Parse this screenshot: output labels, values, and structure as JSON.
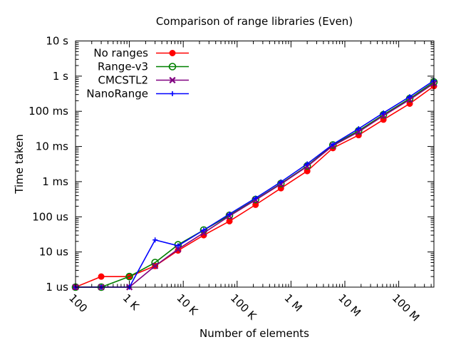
{
  "chart_data": {
    "type": "line",
    "title": "Comparison of range libraries (Even)",
    "xlabel": "Number of elements",
    "ylabel": "Time taken",
    "x_scale": "log",
    "y_scale": "log",
    "xlim": [
      100,
      450000000
    ],
    "ylim": [
      1e-06,
      10
    ],
    "grid": false,
    "legend_position": "top-left",
    "x_ticks": [
      {
        "value": 100,
        "label": "100"
      },
      {
        "value": 1000,
        "label": "1 K"
      },
      {
        "value": 10000,
        "label": "10 K"
      },
      {
        "value": 100000,
        "label": "100 K"
      },
      {
        "value": 1000000,
        "label": "1 M"
      },
      {
        "value": 10000000,
        "label": "10 M"
      },
      {
        "value": 100000000,
        "label": "100 M"
      }
    ],
    "y_ticks": [
      {
        "value": 1e-06,
        "label": "1 us"
      },
      {
        "value": 1e-05,
        "label": "10 us"
      },
      {
        "value": 0.0001,
        "label": "100 us"
      },
      {
        "value": 0.001,
        "label": "1 ms"
      },
      {
        "value": 0.01,
        "label": "10 ms"
      },
      {
        "value": 0.1,
        "label": "100 ms"
      },
      {
        "value": 1,
        "label": "1  s"
      },
      {
        "value": 10,
        "label": "10  s"
      }
    ],
    "x": [
      100,
      300,
      1000,
      3000,
      8000,
      24000,
      72000,
      220000,
      650000,
      2000000,
      6000000,
      18000000,
      52000000,
      160000000,
      450000000
    ],
    "series": [
      {
        "name": "No ranges",
        "color": "#ff0000",
        "marker": "filled-circle",
        "values": [
          1e-06,
          2e-06,
          2e-06,
          4e-06,
          1.1e-05,
          3e-05,
          7.5e-05,
          0.00022,
          0.00065,
          0.002,
          0.009,
          0.021,
          0.058,
          0.165,
          0.52
        ]
      },
      {
        "name": "Range-v3",
        "color": "#008000",
        "marker": "open-circle",
        "values": [
          1e-06,
          1e-06,
          2e-06,
          5e-06,
          1.6e-05,
          4.2e-05,
          0.00011,
          0.00031,
          0.00088,
          0.0028,
          0.011,
          0.028,
          0.08,
          0.23,
          0.68
        ]
      },
      {
        "name": "CMCSTL2",
        "color": "#800080",
        "marker": "x-cross",
        "values": [
          1e-06,
          1e-06,
          1e-06,
          4e-06,
          1.2e-05,
          3.5e-05,
          0.000105,
          0.0003,
          0.00085,
          0.0027,
          0.0105,
          0.026,
          0.075,
          0.215,
          0.62
        ]
      },
      {
        "name": "NanoRange",
        "color": "#0000ff",
        "marker": "plus",
        "values": [
          1e-06,
          1e-06,
          1e-06,
          2.2e-05,
          1.5e-05,
          4.2e-05,
          0.00012,
          0.00034,
          0.00098,
          0.0032,
          0.0115,
          0.032,
          0.09,
          0.26,
          0.75
        ]
      }
    ]
  }
}
